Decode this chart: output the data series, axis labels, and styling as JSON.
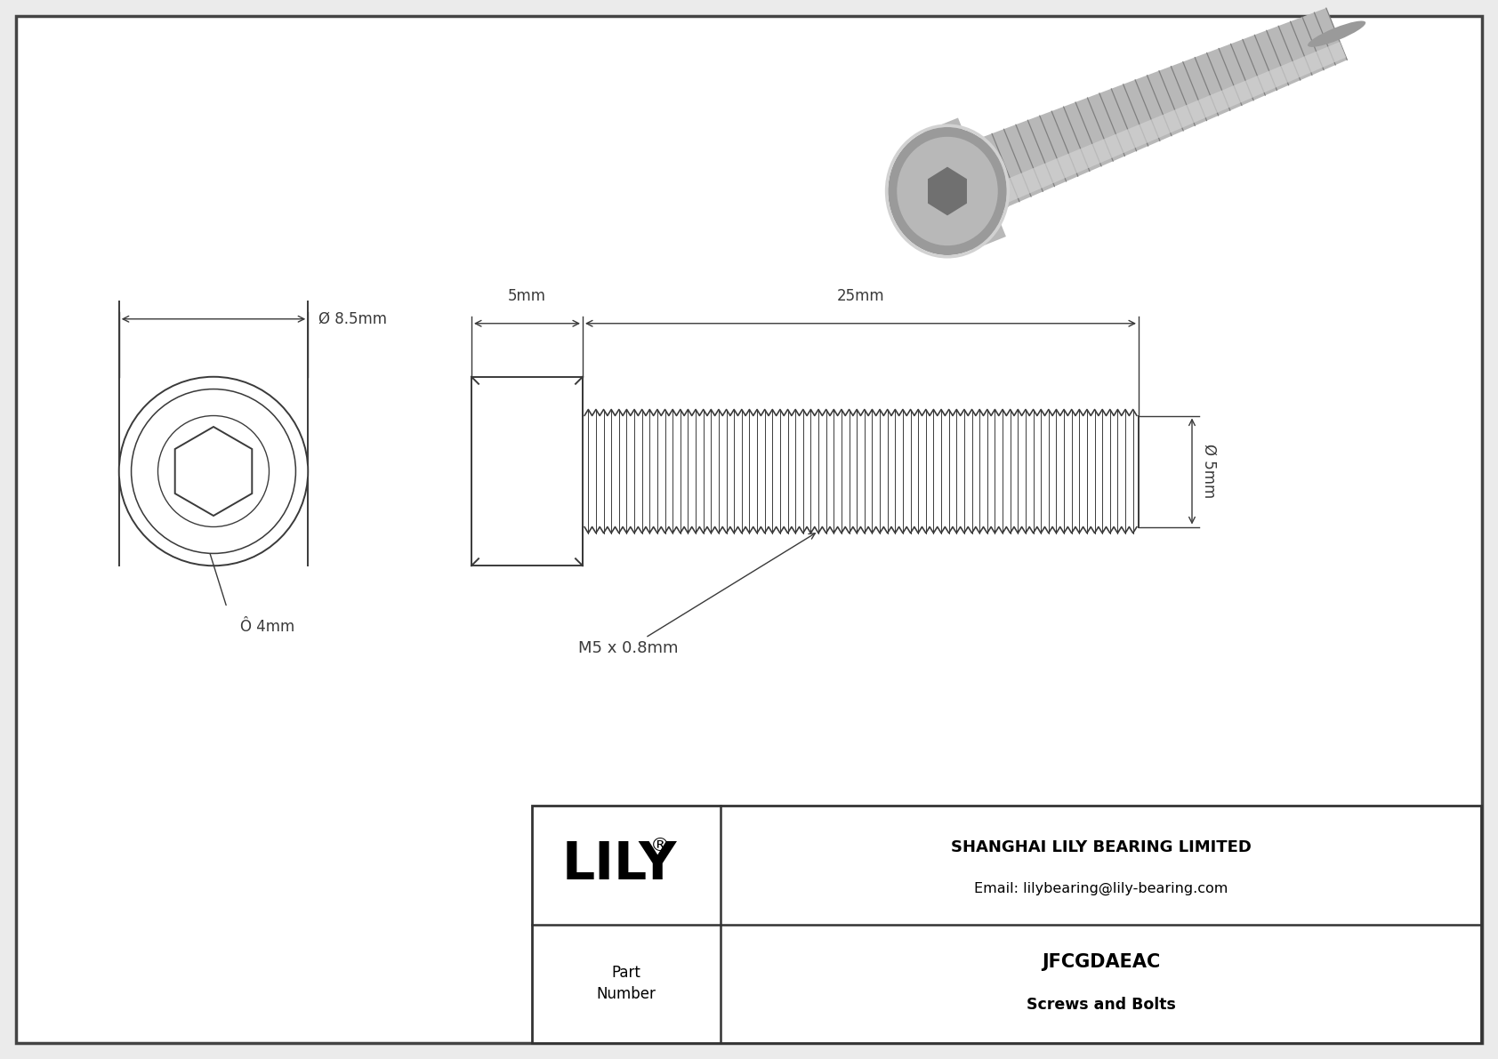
{
  "bg_color": "#ebebeb",
  "line_color": "#3a3a3a",
  "dim_color": "#3a3a3a",
  "white": "#ffffff",
  "title_company": "SHANGHAI LILY BEARING LIMITED",
  "title_email": "Email: lilybearing@lily-bearing.com",
  "part_number": "JFCGDAEAC",
  "part_category": "Screws and Bolts",
  "dim_head_diameter": "Ø 8.5mm",
  "dim_inner_diameter": "Ô 4mm",
  "dim_head_length": "5mm",
  "dim_shaft_length": "25mm",
  "dim_shaft_diameter": "Ø 5mm",
  "dim_thread": "M5 x 0.8mm",
  "border_color": "#555555",
  "grey_3d_light": "#d2d2d2",
  "grey_3d_mid": "#b8b8b8",
  "grey_3d_dark": "#9a9a9a",
  "grey_3d_darker": "#808080",
  "grey_3d_shadow": "#6a6a6a"
}
